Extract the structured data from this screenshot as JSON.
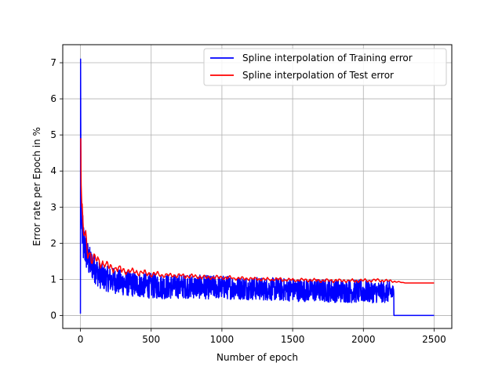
{
  "chart_data": {
    "type": "line",
    "title": "",
    "xlabel": "Number of epoch",
    "ylabel": "Error rate per Epoch in %",
    "xlim": [
      -125,
      2625
    ],
    "ylim": [
      -0.36,
      7.5
    ],
    "xticks": [
      0,
      500,
      1000,
      1500,
      2000,
      2500
    ],
    "yticks": [
      0,
      1,
      2,
      3,
      4,
      5,
      6,
      7
    ],
    "grid": true,
    "legend_position": "top-right",
    "series": [
      {
        "name": "Spline interpolation of Training error",
        "color": "#0000ff",
        "style": "noisy",
        "x": [
          0,
          1,
          2,
          4,
          6,
          10,
          15,
          20,
          30,
          40,
          50,
          60,
          80,
          100,
          130,
          160,
          200,
          250,
          300,
          400,
          500,
          600,
          700,
          800,
          900,
          1000,
          1200,
          1400,
          1600,
          1800,
          2000,
          2100,
          2200,
          2215,
          2216,
          2500
        ],
        "y": [
          0.05,
          7.1,
          5.5,
          3.6,
          2.8,
          2.4,
          2.2,
          2.0,
          1.9,
          1.75,
          1.6,
          1.5,
          1.4,
          1.3,
          1.15,
          1.05,
          1.0,
          0.95,
          0.9,
          0.85,
          0.82,
          0.8,
          0.8,
          0.8,
          0.78,
          0.78,
          0.75,
          0.72,
          0.7,
          0.68,
          0.66,
          0.65,
          0.65,
          0.6,
          0.0,
          0.0
        ],
        "noise": [
          0,
          0,
          0,
          0.8,
          0.8,
          0.7,
          0.65,
          0.6,
          0.55,
          0.5,
          0.48,
          0.45,
          0.42,
          0.4,
          0.38,
          0.36,
          0.35,
          0.35,
          0.35,
          0.35,
          0.35,
          0.35,
          0.33,
          0.33,
          0.33,
          0.33,
          0.32,
          0.32,
          0.32,
          0.32,
          0.32,
          0.3,
          0.3,
          0.2,
          0,
          0
        ]
      },
      {
        "name": "Spline interpolation of Test error",
        "color": "#ff0000",
        "style": "smooth",
        "x": [
          0,
          2,
          5,
          10,
          20,
          40,
          60,
          80,
          100,
          120,
          150,
          200,
          250,
          300,
          400,
          500,
          600,
          700,
          800,
          900,
          1000,
          1100,
          1200,
          1300,
          1400,
          1500,
          1600,
          1700,
          1800,
          1900,
          2000,
          2100,
          2200,
          2300,
          2500
        ],
        "y": [
          4.9,
          4.9,
          3.6,
          3.0,
          2.4,
          2.0,
          1.8,
          1.6,
          1.55,
          1.5,
          1.45,
          1.35,
          1.3,
          1.25,
          1.2,
          1.15,
          1.12,
          1.1,
          1.08,
          1.05,
          1.05,
          1.03,
          1.02,
          1.0,
          1.0,
          0.98,
          0.98,
          0.97,
          0.97,
          0.96,
          0.96,
          0.98,
          0.95,
          0.9,
          0.9
        ],
        "noise": [
          0,
          0,
          0.3,
          0.3,
          0.3,
          0.3,
          0.25,
          0.22,
          0.2,
          0.18,
          0.16,
          0.14,
          0.12,
          0.1,
          0.08,
          0.08,
          0.07,
          0.06,
          0.06,
          0.06,
          0.06,
          0.05,
          0.05,
          0.05,
          0.05,
          0.05,
          0.05,
          0.05,
          0.05,
          0.05,
          0.05,
          0.05,
          0.03,
          0.0,
          0.0
        ]
      }
    ]
  }
}
